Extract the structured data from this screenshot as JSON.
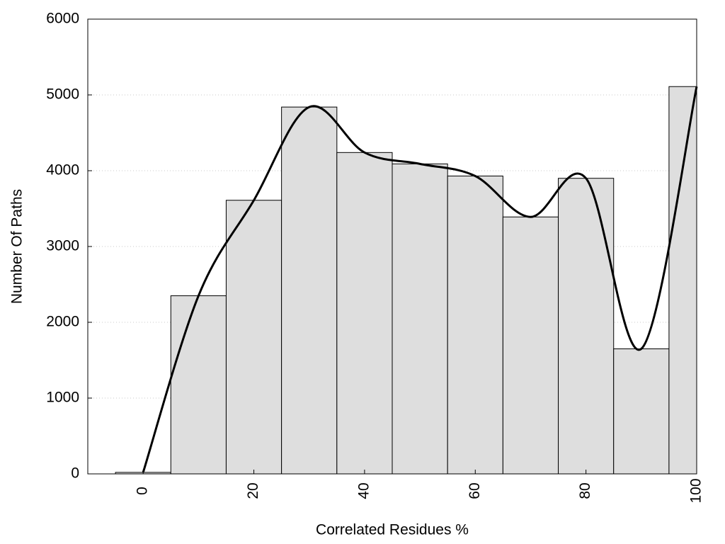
{
  "chart_data": {
    "type": "histogram",
    "xlabel": "Correlated Residues %",
    "ylabel": "Number Of Paths",
    "bins": [
      -5,
      5,
      15,
      25,
      35,
      45,
      55,
      65,
      75,
      85,
      95,
      105
    ],
    "values": [
      20,
      2350,
      3610,
      4840,
      4240,
      4090,
      3930,
      3390,
      3900,
      1650,
      5110
    ],
    "color": "#dedede",
    "line_color": "#000000",
    "smooth_line": true,
    "xlim": [
      -10,
      100
    ],
    "xticks": [
      0,
      20,
      40,
      60,
      80,
      100
    ],
    "ylim": [
      0,
      6000
    ],
    "yticks": [
      0,
      1000,
      2000,
      3000,
      4000,
      5000,
      6000
    ],
    "grid": true
  }
}
